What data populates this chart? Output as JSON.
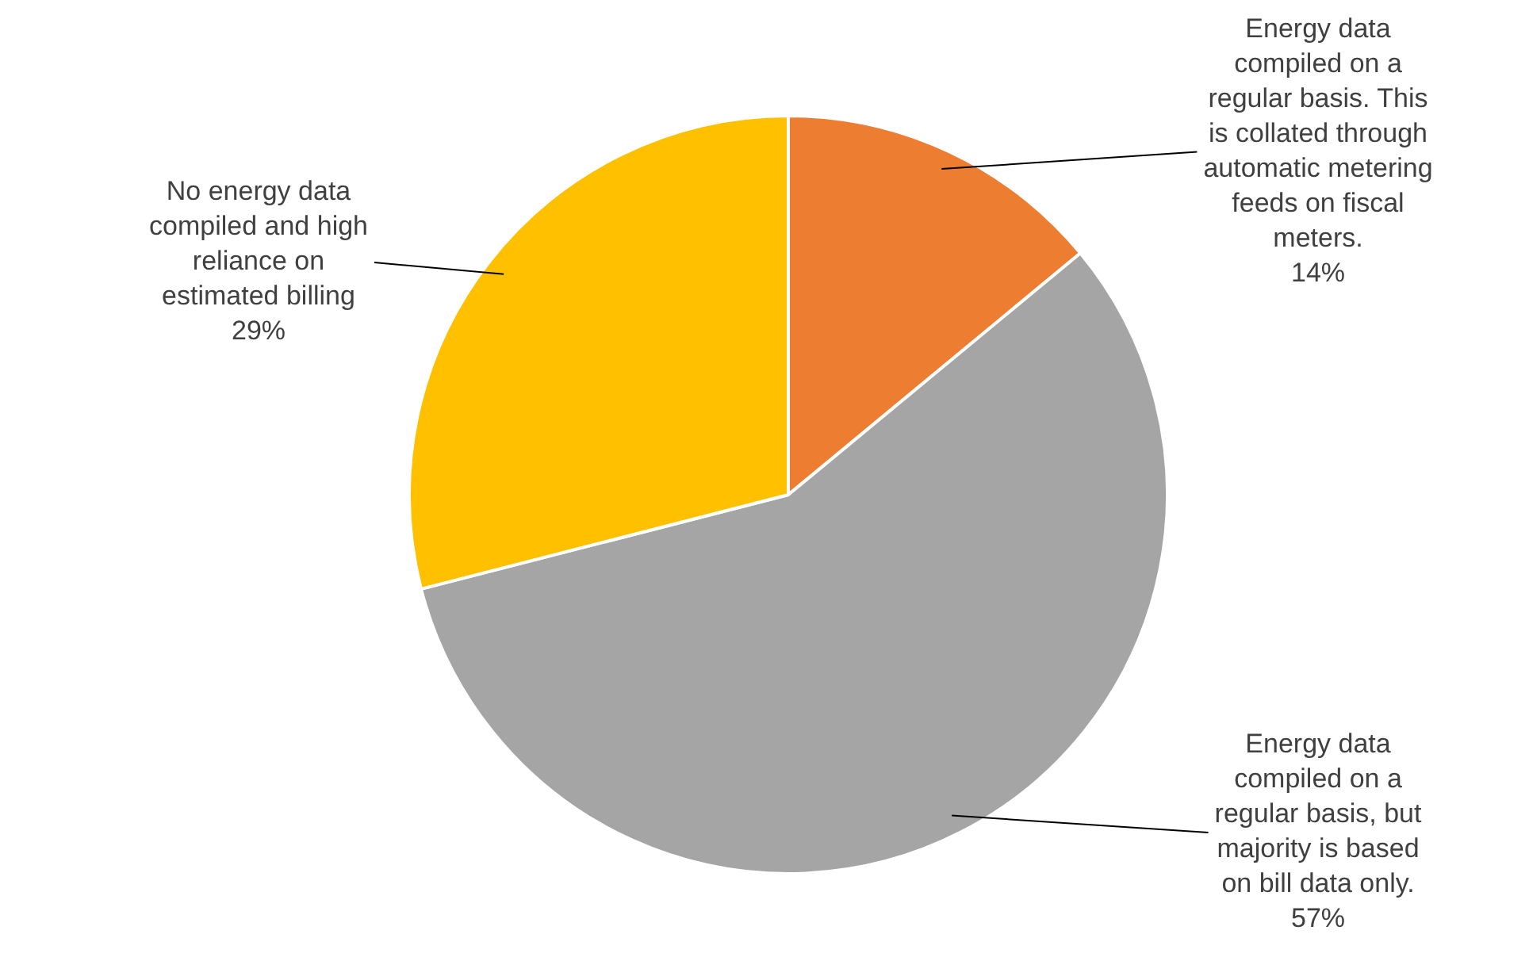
{
  "chart_data": {
    "type": "pie",
    "categories": [
      "Energy data compiled on a regular basis. This is collated through automatic metering feeds on fiscal meters.",
      "Energy data compiled on a regular basis, but majority is based on bill data only.",
      "No energy data compiled and high reliance on estimated billing"
    ],
    "values": [
      14,
      57,
      29
    ],
    "value_labels": [
      "14%",
      "57%",
      "29%"
    ],
    "colors": [
      "#ed7d31",
      "#a5a5a5",
      "#ffc000"
    ],
    "legend": false
  }
}
